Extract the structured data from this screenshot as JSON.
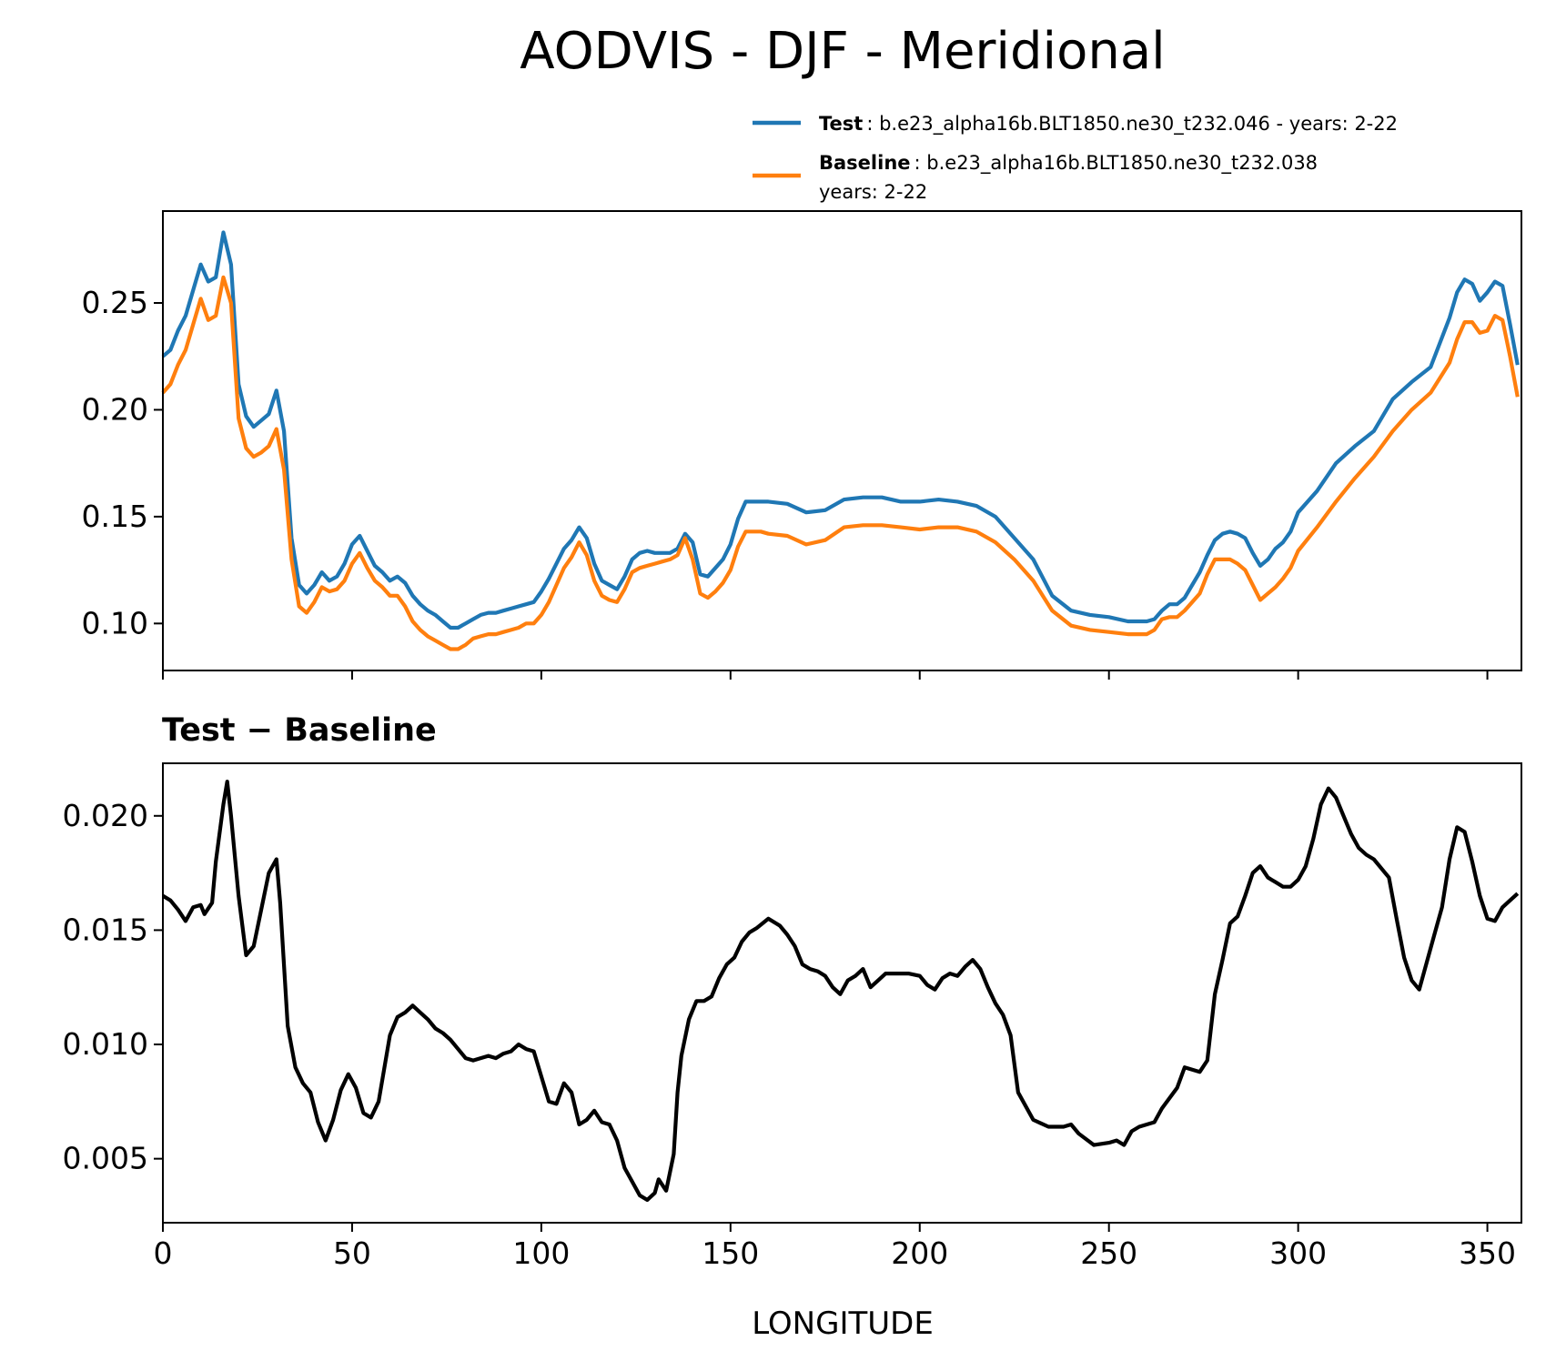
{
  "figure": {
    "title": "AODVIS - DJF - Meridional"
  },
  "colors": {
    "test": "#1f77b4",
    "baseline": "#ff7f0e",
    "diff": "#000000",
    "axis": "#000000"
  },
  "legend": {
    "test_label": "Test",
    "test_text": ": b.e23_alpha16b.BLT1850.ne30_t232.046 - years: 2-22",
    "baseline_label": "Baseline",
    "baseline_text": ": b.e23_alpha16b.BLT1850.ne30_t232.038",
    "baseline_text2": "years: 2-22"
  },
  "chart_data": [
    {
      "type": "line",
      "panel": "top",
      "title": "",
      "xlabel": "",
      "ylabel": "",
      "xlim": [
        0,
        359
      ],
      "ylim": [
        0.078,
        0.293
      ],
      "yticks": [
        0.1,
        0.15,
        0.2,
        0.25
      ],
      "ytick_labels": [
        "0.10",
        "0.15",
        "0.20",
        "0.25"
      ],
      "xticks": [
        0,
        50,
        100,
        150,
        200,
        250,
        300,
        350
      ],
      "series": [
        {
          "name": "Test",
          "x": [
            0,
            2,
            4,
            6,
            8,
            10,
            12,
            14,
            16,
            18,
            20,
            22,
            24,
            26,
            28,
            30,
            32,
            34,
            36,
            38,
            40,
            42,
            44,
            46,
            48,
            50,
            52,
            54,
            56,
            58,
            60,
            62,
            64,
            66,
            68,
            70,
            72,
            74,
            76,
            78,
            80,
            82,
            84,
            86,
            88,
            90,
            92,
            94,
            96,
            98,
            100,
            102,
            104,
            106,
            108,
            110,
            112,
            114,
            116,
            118,
            120,
            122,
            124,
            126,
            128,
            130,
            132,
            134,
            136,
            138,
            140,
            142,
            144,
            146,
            148,
            150,
            152,
            154,
            156,
            158,
            160,
            165,
            170,
            175,
            180,
            185,
            190,
            195,
            200,
            205,
            210,
            215,
            220,
            225,
            230,
            235,
            240,
            245,
            250,
            255,
            260,
            262,
            264,
            266,
            268,
            270,
            272,
            274,
            276,
            278,
            280,
            282,
            284,
            286,
            288,
            290,
            292,
            294,
            296,
            298,
            300,
            305,
            310,
            315,
            320,
            325,
            330,
            335,
            340,
            342,
            344,
            346,
            348,
            350,
            352,
            354,
            356,
            358
          ],
          "values": [
            0.225,
            0.228,
            0.237,
            0.244,
            0.256,
            0.268,
            0.26,
            0.262,
            0.283,
            0.268,
            0.212,
            0.197,
            0.192,
            0.195,
            0.198,
            0.209,
            0.19,
            0.14,
            0.118,
            0.114,
            0.118,
            0.124,
            0.12,
            0.122,
            0.128,
            0.137,
            0.141,
            0.134,
            0.127,
            0.124,
            0.12,
            0.122,
            0.119,
            0.113,
            0.109,
            0.106,
            0.104,
            0.101,
            0.098,
            0.098,
            0.1,
            0.102,
            0.104,
            0.105,
            0.105,
            0.106,
            0.107,
            0.108,
            0.109,
            0.11,
            0.115,
            0.121,
            0.128,
            0.135,
            0.139,
            0.145,
            0.14,
            0.128,
            0.12,
            0.118,
            0.116,
            0.122,
            0.13,
            0.133,
            0.134,
            0.133,
            0.133,
            0.133,
            0.135,
            0.142,
            0.138,
            0.123,
            0.122,
            0.126,
            0.13,
            0.137,
            0.149,
            0.157,
            0.157,
            0.157,
            0.157,
            0.156,
            0.152,
            0.153,
            0.158,
            0.159,
            0.159,
            0.157,
            0.157,
            0.158,
            0.157,
            0.155,
            0.15,
            0.14,
            0.13,
            0.113,
            0.106,
            0.104,
            0.103,
            0.101,
            0.101,
            0.102,
            0.106,
            0.109,
            0.109,
            0.112,
            0.118,
            0.124,
            0.132,
            0.139,
            0.142,
            0.143,
            0.142,
            0.14,
            0.133,
            0.127,
            0.13,
            0.135,
            0.138,
            0.143,
            0.152,
            0.162,
            0.175,
            0.183,
            0.19,
            0.205,
            0.213,
            0.22,
            0.243,
            0.255,
            0.261,
            0.259,
            0.251,
            0.255,
            0.26,
            0.258,
            0.24,
            0.221
          ]
        },
        {
          "name": "Baseline",
          "x": [
            0,
            2,
            4,
            6,
            8,
            10,
            12,
            14,
            16,
            18,
            20,
            22,
            24,
            26,
            28,
            30,
            32,
            34,
            36,
            38,
            40,
            42,
            44,
            46,
            48,
            50,
            52,
            54,
            56,
            58,
            60,
            62,
            64,
            66,
            68,
            70,
            72,
            74,
            76,
            78,
            80,
            82,
            84,
            86,
            88,
            90,
            92,
            94,
            96,
            98,
            100,
            102,
            104,
            106,
            108,
            110,
            112,
            114,
            116,
            118,
            120,
            122,
            124,
            126,
            128,
            130,
            132,
            134,
            136,
            138,
            140,
            142,
            144,
            146,
            148,
            150,
            152,
            154,
            156,
            158,
            160,
            165,
            170,
            175,
            180,
            185,
            190,
            195,
            200,
            205,
            210,
            215,
            220,
            225,
            230,
            235,
            240,
            245,
            250,
            255,
            260,
            262,
            264,
            266,
            268,
            270,
            272,
            274,
            276,
            278,
            280,
            282,
            284,
            286,
            288,
            290,
            292,
            294,
            296,
            298,
            300,
            305,
            310,
            315,
            320,
            325,
            330,
            335,
            340,
            342,
            344,
            346,
            348,
            350,
            352,
            354,
            356,
            358
          ],
          "values": [
            0.208,
            0.212,
            0.221,
            0.228,
            0.24,
            0.252,
            0.242,
            0.244,
            0.262,
            0.25,
            0.196,
            0.182,
            0.178,
            0.18,
            0.183,
            0.191,
            0.172,
            0.13,
            0.108,
            0.105,
            0.11,
            0.117,
            0.115,
            0.116,
            0.12,
            0.128,
            0.133,
            0.126,
            0.12,
            0.117,
            0.113,
            0.113,
            0.108,
            0.101,
            0.097,
            0.094,
            0.092,
            0.09,
            0.088,
            0.088,
            0.09,
            0.093,
            0.094,
            0.095,
            0.095,
            0.096,
            0.097,
            0.098,
            0.1,
            0.1,
            0.104,
            0.11,
            0.118,
            0.126,
            0.131,
            0.138,
            0.132,
            0.12,
            0.113,
            0.111,
            0.11,
            0.116,
            0.124,
            0.126,
            0.127,
            0.128,
            0.129,
            0.13,
            0.132,
            0.14,
            0.13,
            0.114,
            0.112,
            0.115,
            0.119,
            0.125,
            0.136,
            0.143,
            0.143,
            0.143,
            0.142,
            0.141,
            0.137,
            0.139,
            0.145,
            0.146,
            0.146,
            0.145,
            0.144,
            0.145,
            0.145,
            0.143,
            0.138,
            0.13,
            0.12,
            0.106,
            0.099,
            0.097,
            0.096,
            0.095,
            0.095,
            0.097,
            0.102,
            0.103,
            0.103,
            0.106,
            0.11,
            0.114,
            0.123,
            0.13,
            0.13,
            0.13,
            0.128,
            0.125,
            0.118,
            0.111,
            0.114,
            0.117,
            0.121,
            0.126,
            0.134,
            0.145,
            0.157,
            0.168,
            0.178,
            0.19,
            0.2,
            0.208,
            0.222,
            0.233,
            0.241,
            0.241,
            0.236,
            0.237,
            0.244,
            0.242,
            0.225,
            0.206
          ]
        }
      ]
    },
    {
      "type": "line",
      "panel": "bottom",
      "title": "Test − Baseline",
      "xlabel": "LONGITUDE",
      "ylabel": "",
      "xlim": [
        0,
        359
      ],
      "ylim": [
        0.0022,
        0.0223
      ],
      "yticks": [
        0.005,
        0.01,
        0.015,
        0.02
      ],
      "ytick_labels": [
        "0.005",
        "0.010",
        "0.015",
        "0.020"
      ],
      "xticks": [
        0,
        50,
        100,
        150,
        200,
        250,
        300,
        350
      ],
      "xtick_labels": [
        "0",
        "50",
        "100",
        "150",
        "200",
        "250",
        "300",
        "350"
      ],
      "series": [
        {
          "name": "Test − Baseline",
          "x": [
            0,
            2,
            4,
            6,
            8,
            10,
            11,
            13,
            14,
            16,
            17,
            18,
            20,
            22,
            24,
            26,
            28,
            30,
            31,
            33,
            35,
            37,
            39,
            41,
            43,
            45,
            47,
            49,
            51,
            53,
            55,
            57,
            60,
            62,
            64,
            66,
            68,
            70,
            72,
            74,
            76,
            78,
            80,
            82,
            84,
            86,
            88,
            90,
            92,
            94,
            96,
            98,
            100,
            102,
            104,
            106,
            108,
            110,
            112,
            114,
            116,
            118,
            120,
            122,
            124,
            126,
            128,
            130,
            131,
            133,
            135,
            136,
            137,
            139,
            141,
            143,
            145,
            147,
            149,
            151,
            153,
            155,
            157,
            160,
            163,
            165,
            167,
            169,
            171,
            173,
            175,
            177,
            179,
            181,
            183,
            185,
            187,
            189,
            191,
            193,
            195,
            197,
            200,
            202,
            204,
            206,
            208,
            210,
            212,
            214,
            216,
            218,
            220,
            222,
            224,
            226,
            230,
            234,
            238,
            240,
            242,
            246,
            250,
            252,
            254,
            256,
            258,
            262,
            264,
            268,
            270,
            274,
            276,
            278,
            280,
            282,
            284,
            286,
            288,
            290,
            292,
            294,
            296,
            298,
            300,
            302,
            304,
            306,
            308,
            310,
            312,
            314,
            316,
            318,
            320,
            324,
            326,
            328,
            330,
            332,
            334,
            336,
            338,
            340,
            342,
            344,
            346,
            348,
            350,
            352,
            354,
            356,
            358
          ],
          "values": [
            0.0165,
            0.0163,
            0.0159,
            0.0154,
            0.016,
            0.0161,
            0.0157,
            0.0162,
            0.018,
            0.0205,
            0.0215,
            0.02,
            0.0165,
            0.0139,
            0.0143,
            0.0159,
            0.0175,
            0.0181,
            0.0162,
            0.0108,
            0.009,
            0.0083,
            0.0079,
            0.0066,
            0.0058,
            0.0067,
            0.008,
            0.0087,
            0.0081,
            0.007,
            0.0068,
            0.0075,
            0.0104,
            0.0112,
            0.0114,
            0.0117,
            0.0114,
            0.0111,
            0.0107,
            0.0105,
            0.0102,
            0.0098,
            0.0094,
            0.0093,
            0.0094,
            0.0095,
            0.0094,
            0.0096,
            0.0097,
            0.01,
            0.0098,
            0.0097,
            0.0086,
            0.0075,
            0.0074,
            0.0083,
            0.0079,
            0.0065,
            0.0067,
            0.0071,
            0.0066,
            0.0065,
            0.0058,
            0.0046,
            0.004,
            0.0034,
            0.0032,
            0.0035,
            0.0041,
            0.0036,
            0.0052,
            0.0079,
            0.0095,
            0.0111,
            0.0119,
            0.0119,
            0.0121,
            0.0129,
            0.0135,
            0.0138,
            0.0145,
            0.0149,
            0.0151,
            0.0155,
            0.0152,
            0.0148,
            0.0143,
            0.0135,
            0.0133,
            0.0132,
            0.013,
            0.0125,
            0.0122,
            0.0128,
            0.013,
            0.0133,
            0.0125,
            0.0128,
            0.0131,
            0.0131,
            0.0131,
            0.0131,
            0.013,
            0.0126,
            0.0124,
            0.0129,
            0.0131,
            0.013,
            0.0134,
            0.0137,
            0.0133,
            0.0125,
            0.0118,
            0.0113,
            0.0104,
            0.0079,
            0.0067,
            0.0064,
            0.0064,
            0.0065,
            0.0061,
            0.0056,
            0.0057,
            0.0058,
            0.0056,
            0.0062,
            0.0064,
            0.0066,
            0.0072,
            0.0081,
            0.009,
            0.0088,
            0.0093,
            0.0122,
            0.0137,
            0.0153,
            0.0156,
            0.0165,
            0.0175,
            0.0178,
            0.0173,
            0.0171,
            0.0169,
            0.0169,
            0.0172,
            0.0178,
            0.019,
            0.0205,
            0.0212,
            0.0208,
            0.02,
            0.0192,
            0.0186,
            0.0183,
            0.0181,
            0.0173,
            0.0155,
            0.0138,
            0.0128,
            0.0124,
            0.0136,
            0.0148,
            0.016,
            0.0181,
            0.0195,
            0.0193,
            0.018,
            0.0165,
            0.0155,
            0.0154,
            0.016,
            0.0163,
            0.0166
          ]
        }
      ]
    }
  ]
}
